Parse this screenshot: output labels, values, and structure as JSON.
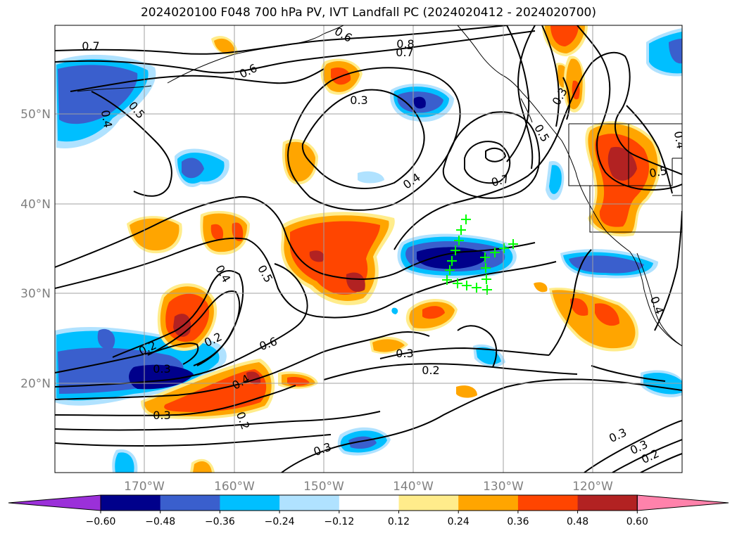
{
  "title": "2024020100 F048 700 hPa PV, IVT Landfall PC (2024020412 - 2024020700)",
  "lon_ticks": [
    "170°W",
    "160°W",
    "150°W",
    "140°W",
    "130°W",
    "120°W"
  ],
  "lat_ticks": [
    "50°N",
    "40°N",
    "30°N",
    "20°N"
  ],
  "colorbar": {
    "ticks": [
      "−0.60",
      "−0.48",
      "−0.36",
      "−0.24",
      "−0.12",
      "0.12",
      "0.24",
      "0.36",
      "0.48",
      "0.60"
    ],
    "colors": [
      "#9b30d9",
      "#00008b",
      "#3a5fcd",
      "#00bfff",
      "#b0e2ff",
      "#ffffff",
      "#ffec8b",
      "#ffa500",
      "#ff4500",
      "#b22222",
      "#ff82ab"
    ]
  },
  "contour_labels": [
    "0.7",
    "0.6",
    "0.8",
    "0.7",
    "0.6",
    "0.5",
    "0.4",
    "0.3",
    "0.4",
    "0.7",
    "0.5",
    "0.3",
    "0.5",
    "0.4",
    "0.4",
    "0.5",
    "0.6",
    "0.2",
    "0.2",
    "0.3",
    "0.4",
    "0.3",
    "0.2",
    "0.3",
    "0.2",
    "0.3",
    "0.3",
    "0.3",
    "0.2",
    "0.4"
  ]
}
